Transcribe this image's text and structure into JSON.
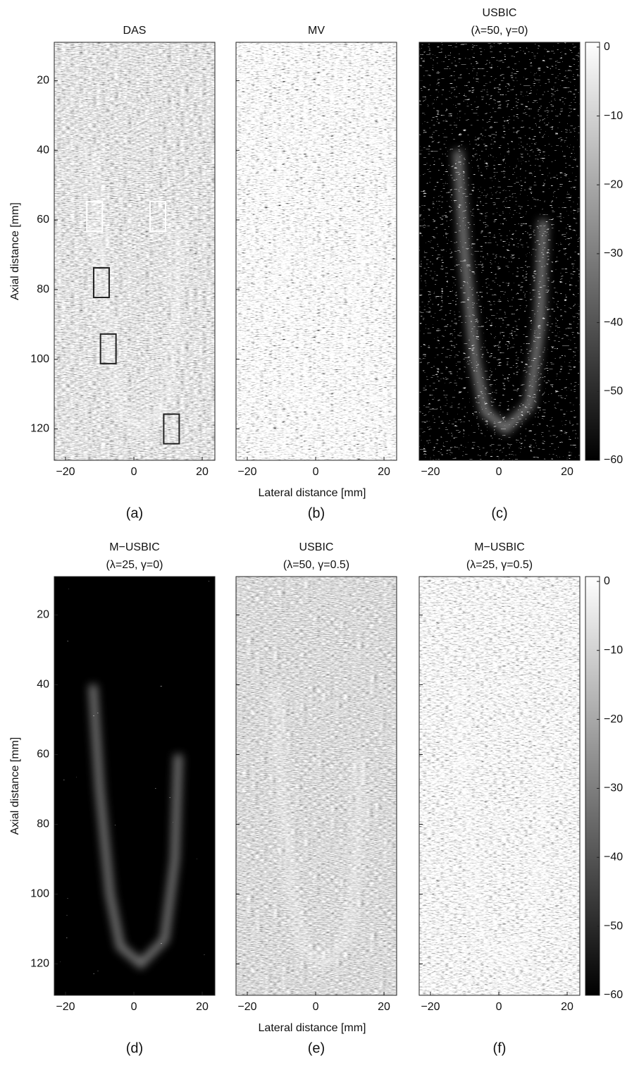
{
  "x_label": "Lateral distance [mm]",
  "y_label": "Axial distance [mm]",
  "xlim": [
    -23.3,
    23.7
  ],
  "xticks": [
    {
      "value": -20,
      "label": "−20"
    },
    0,
    20
  ],
  "ylim": [
    9,
    129
  ],
  "yticks": [
    20,
    40,
    60,
    80,
    100,
    120
  ],
  "colorbar": {
    "lim": [
      -60,
      0.7
    ],
    "ticks": [
      0,
      {
        "value": -10,
        "label": "−10"
      },
      {
        "value": -20,
        "label": "−20"
      },
      {
        "value": -30,
        "label": "−30"
      },
      {
        "value": -40,
        "label": "−40"
      },
      {
        "value": -50,
        "label": "−50"
      },
      {
        "value": -60,
        "label": "−60"
      }
    ]
  },
  "rows": [
    {
      "panels": [
        {
          "title": [
            "DAS"
          ],
          "caption": "(a)"
        },
        {
          "title": [
            "MV"
          ],
          "caption": "(b)"
        },
        {
          "title": [
            "USBIC",
            "(λ=50, γ=0)"
          ],
          "caption": "(c)"
        }
      ]
    },
    {
      "panels": [
        {
          "title": [
            "M−USBIC",
            "(λ=25, γ=0)"
          ],
          "caption": "(d)"
        },
        {
          "title": [
            "USBIC",
            "(λ=50, γ=0.5)"
          ],
          "caption": "(e)"
        },
        {
          "title": [
            "M−USBIC",
            "(λ=25, γ=0.5)"
          ],
          "caption": "(f)"
        }
      ]
    }
  ]
}
